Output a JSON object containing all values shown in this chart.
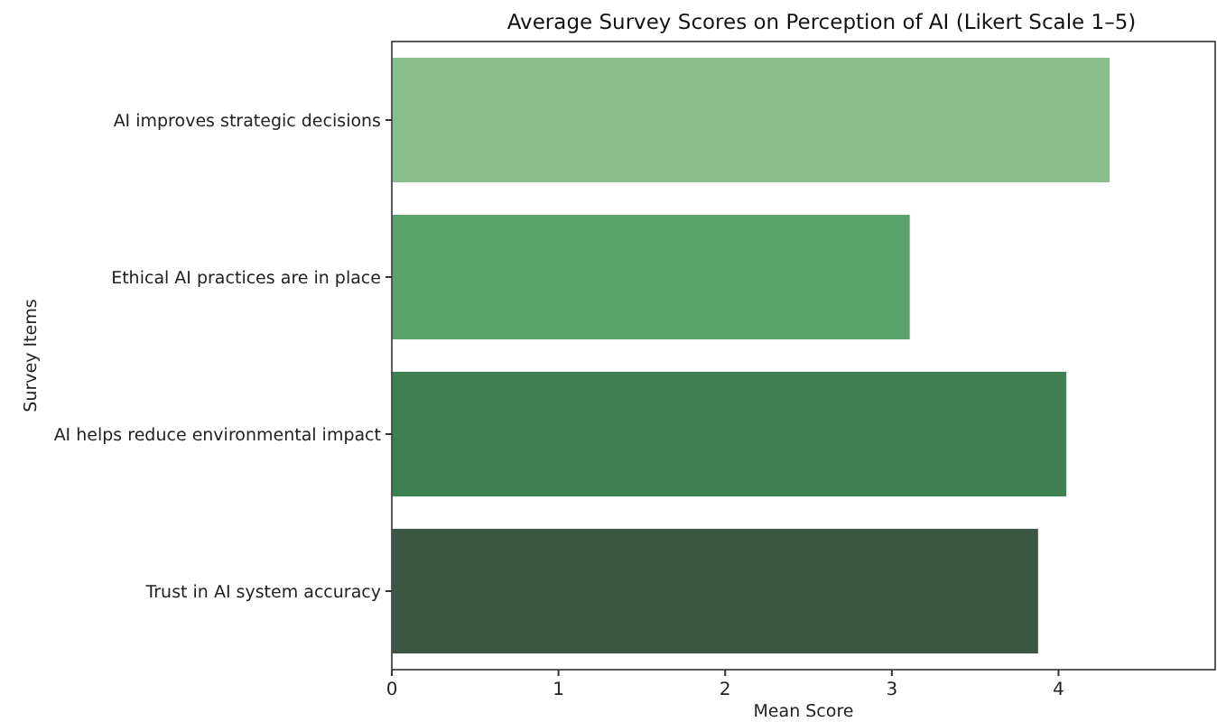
{
  "chart_data": {
    "type": "bar",
    "orientation": "horizontal",
    "title": "Average Survey Scores on Perception of AI (Likert Scale 1–5)",
    "xlabel": "Mean Score",
    "ylabel": "Survey Items",
    "categories": [
      "AI improves strategic decisions",
      "Ethical AI practices are in place",
      "AI helps reduce environmental impact",
      "Trust in AI system accuracy"
    ],
    "values": [
      4.31,
      3.11,
      4.05,
      3.88
    ],
    "colors": [
      "#8abd8c",
      "#5aa46b",
      "#3f8052",
      "#3b5743"
    ],
    "xlim": [
      0,
      4.94
    ],
    "xticks": [
      0,
      1,
      2,
      3,
      4
    ],
    "grid": false
  }
}
